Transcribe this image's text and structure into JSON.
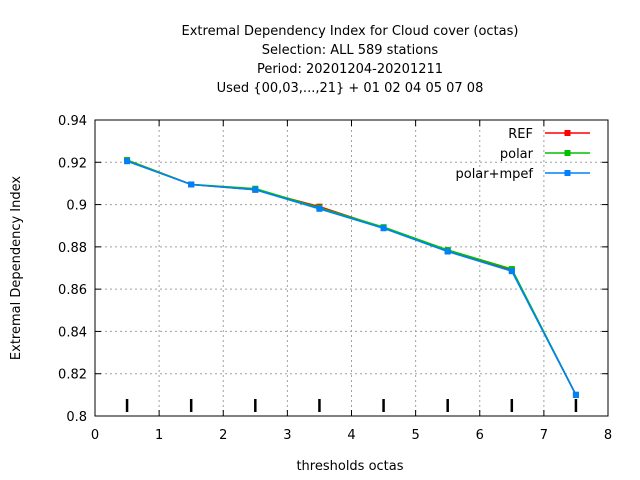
{
  "chart_data": {
    "type": "line",
    "title_lines": [
      "Extremal Dependency Index  for Cloud cover (octas)",
      "Selection: ALL    589 stations",
      "Period: 20201204-20201211",
      "Used {00,03,...,21} + 01 02 04 05 07 08"
    ],
    "xlabel": "thresholds octas",
    "ylabel": "Extremal Dependency Index",
    "xlim": [
      0,
      8
    ],
    "ylim": [
      0.8,
      0.94
    ],
    "xticks": [
      "0",
      "1",
      "2",
      "3",
      "4",
      "5",
      "6",
      "7",
      "8"
    ],
    "yticks": [
      "0.8",
      "0.82",
      "0.84",
      "0.86",
      "0.88",
      "0.9",
      "0.92",
      "0.94"
    ],
    "grid": true,
    "legend_position": "top-right",
    "x": [
      0.5,
      1.5,
      2.5,
      3.5,
      4.5,
      5.5,
      6.5,
      7.5
    ],
    "series": [
      {
        "name": "REF",
        "color": "#ff0000",
        "values": [
          0.921,
          0.9095,
          0.907,
          0.899,
          0.889,
          0.878,
          0.869,
          0.81
        ]
      },
      {
        "name": "polar",
        "color": "#00c000",
        "values": [
          0.921,
          0.9095,
          0.9075,
          0.8985,
          0.8893,
          0.8785,
          0.8695,
          0.81
        ]
      },
      {
        "name": "polar+mpef",
        "color": "#0080ff",
        "values": [
          0.9205,
          0.9095,
          0.907,
          0.898,
          0.8888,
          0.8778,
          0.8685,
          0.81
        ]
      }
    ]
  }
}
